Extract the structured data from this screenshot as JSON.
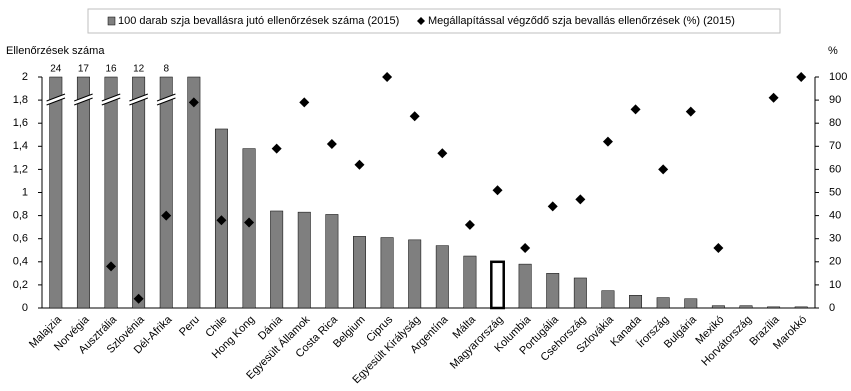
{
  "chart_data": {
    "type": "bar",
    "y_label": "Ellenőrzések száma",
    "y2_label": "%",
    "categories": [
      "Malajzia",
      "Norvégia",
      "Ausztrália",
      "Szlovénia",
      "Dél-Afrika",
      "Peru",
      "Chile",
      "Hong Kong",
      "Dánia",
      "Egyesült Államok",
      "Costa Rica",
      "Belgium",
      "Ciprus",
      "Egyesült Királyság",
      "Argentína",
      "Málta",
      "Magyarország",
      "Kolumbia",
      "Portugália",
      "Csehország",
      "Szlovákia",
      "Kanada",
      "Írország",
      "Bulgária",
      "Mexikó",
      "Horvátország",
      "Brazília",
      "Marokkó"
    ],
    "series": [
      {
        "name": "100 darab szja bevallásra jutó ellenőrzések száma (2015)",
        "type": "bar",
        "color": "#7f7f7f",
        "values": [
          24,
          17,
          16,
          12,
          8,
          2,
          1.55,
          1.38,
          0.84,
          0.83,
          0.81,
          0.62,
          0.61,
          0.59,
          0.54,
          0.45,
          0.4,
          0.38,
          0.3,
          0.26,
          0.15,
          0.11,
          0.09,
          0.08,
          0.02,
          0.02,
          0.01,
          0.01
        ]
      },
      {
        "name": "Megállapítással végződő szja bevallás ellenőrzések (%) (2015)",
        "type": "scatter",
        "axis": "y2",
        "color": "#000000",
        "values": [
          null,
          null,
          18,
          4,
          40,
          89,
          38,
          37,
          69,
          89,
          71,
          62,
          100,
          83,
          67,
          36,
          51,
          26,
          44,
          47,
          72,
          86,
          60,
          85,
          26,
          null,
          91,
          100
        ]
      }
    ],
    "highlight": "Magyarország",
    "ylim": [
      0,
      2
    ],
    "yticks": [
      0,
      {
        "value": 0.2,
        "label": "0,2"
      },
      {
        "value": 0.4,
        "label": "0,4"
      },
      {
        "value": 0.6,
        "label": "0,6"
      },
      {
        "value": 0.8,
        "label": "0,8"
      },
      1,
      {
        "value": 1.2,
        "label": "1,2"
      },
      {
        "value": 1.4,
        "label": "1,4"
      },
      {
        "value": 1.6,
        "label": "1,6"
      },
      {
        "value": 1.8,
        "label": "1,8"
      },
      2
    ],
    "y2lim": [
      0,
      100
    ],
    "y2ticks": [
      0,
      10,
      20,
      30,
      40,
      50,
      60,
      70,
      80,
      90,
      100
    ],
    "grid": false
  }
}
